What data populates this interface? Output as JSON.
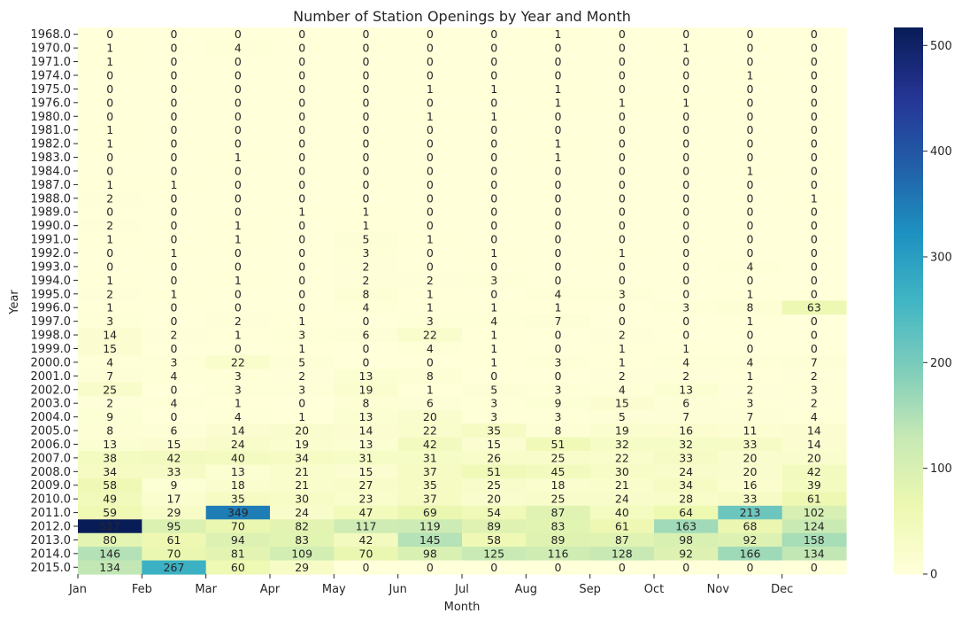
{
  "chart_data": {
    "type": "heatmap",
    "title": "Number of Station Openings by Year and Month",
    "xlabel": "Month",
    "ylabel": "Year",
    "x_tick_labels": [
      "Jan",
      "Feb",
      "Mar",
      "Apr",
      "May",
      "Jun",
      "Jul",
      "Aug",
      "Sep",
      "Oct",
      "Nov",
      "Dec"
    ],
    "y_tick_labels": [
      "1968.0",
      "1970.0",
      "1971.0",
      "1974.0",
      "1975.0",
      "1976.0",
      "1980.0",
      "1981.0",
      "1982.0",
      "1983.0",
      "1984.0",
      "1987.0",
      "1988.0",
      "1989.0",
      "1990.0",
      "1991.0",
      "1992.0",
      "1993.0",
      "1994.0",
      "1995.0",
      "1996.0",
      "1997.0",
      "1998.0",
      "1999.0",
      "2000.0",
      "2001.0",
      "2002.0",
      "2003.0",
      "2004.0",
      "2005.0",
      "2006.0",
      "2007.0",
      "2008.0",
      "2009.0",
      "2010.0",
      "2011.0",
      "2012.0",
      "2013.0",
      "2014.0",
      "2015.0"
    ],
    "values": [
      [
        0,
        0,
        0,
        0,
        0,
        0,
        0,
        1,
        0,
        0,
        0,
        0
      ],
      [
        1,
        0,
        4,
        0,
        0,
        0,
        0,
        0,
        0,
        1,
        0,
        0
      ],
      [
        1,
        0,
        0,
        0,
        0,
        0,
        0,
        0,
        0,
        0,
        0,
        0
      ],
      [
        0,
        0,
        0,
        0,
        0,
        0,
        0,
        0,
        0,
        0,
        1,
        0
      ],
      [
        0,
        0,
        0,
        0,
        0,
        1,
        1,
        1,
        0,
        0,
        0,
        0
      ],
      [
        0,
        0,
        0,
        0,
        0,
        0,
        0,
        1,
        1,
        1,
        0,
        0
      ],
      [
        0,
        0,
        0,
        0,
        0,
        1,
        1,
        0,
        0,
        0,
        0,
        0
      ],
      [
        1,
        0,
        0,
        0,
        0,
        0,
        0,
        0,
        0,
        0,
        0,
        0
      ],
      [
        1,
        0,
        0,
        0,
        0,
        0,
        0,
        1,
        0,
        0,
        0,
        0
      ],
      [
        0,
        0,
        1,
        0,
        0,
        0,
        0,
        1,
        0,
        0,
        0,
        0
      ],
      [
        0,
        0,
        0,
        0,
        0,
        0,
        0,
        0,
        0,
        0,
        1,
        0
      ],
      [
        1,
        1,
        0,
        0,
        0,
        0,
        0,
        0,
        0,
        0,
        0,
        0
      ],
      [
        2,
        0,
        0,
        0,
        0,
        0,
        0,
        0,
        0,
        0,
        0,
        1
      ],
      [
        0,
        0,
        0,
        1,
        1,
        0,
        0,
        0,
        0,
        0,
        0,
        0
      ],
      [
        2,
        0,
        1,
        0,
        1,
        0,
        0,
        0,
        0,
        0,
        0,
        0
      ],
      [
        1,
        0,
        1,
        0,
        5,
        1,
        0,
        0,
        0,
        0,
        0,
        0
      ],
      [
        0,
        1,
        0,
        0,
        3,
        0,
        1,
        0,
        1,
        0,
        0,
        0
      ],
      [
        0,
        0,
        0,
        0,
        2,
        0,
        0,
        0,
        0,
        0,
        4,
        0
      ],
      [
        1,
        0,
        1,
        0,
        2,
        2,
        3,
        0,
        0,
        0,
        0,
        0
      ],
      [
        2,
        1,
        0,
        0,
        8,
        1,
        0,
        4,
        3,
        0,
        1,
        0
      ],
      [
        1,
        0,
        0,
        0,
        4,
        1,
        1,
        1,
        0,
        3,
        8,
        63
      ],
      [
        3,
        0,
        2,
        1,
        0,
        3,
        4,
        7,
        0,
        0,
        1,
        0
      ],
      [
        14,
        2,
        1,
        3,
        6,
        22,
        1,
        0,
        2,
        0,
        0,
        0
      ],
      [
        15,
        0,
        0,
        1,
        0,
        4,
        1,
        0,
        1,
        1,
        0,
        0
      ],
      [
        4,
        3,
        22,
        5,
        0,
        0,
        1,
        3,
        1,
        4,
        4,
        7
      ],
      [
        7,
        4,
        3,
        2,
        13,
        8,
        0,
        0,
        2,
        2,
        1,
        2
      ],
      [
        25,
        0,
        3,
        3,
        19,
        1,
        5,
        3,
        4,
        13,
        2,
        3
      ],
      [
        2,
        4,
        1,
        0,
        8,
        6,
        3,
        9,
        15,
        6,
        3,
        2
      ],
      [
        9,
        0,
        4,
        1,
        13,
        20,
        3,
        3,
        5,
        7,
        7,
        4
      ],
      [
        8,
        6,
        14,
        20,
        14,
        22,
        35,
        8,
        19,
        16,
        11,
        14
      ],
      [
        13,
        15,
        24,
        19,
        13,
        42,
        15,
        51,
        32,
        32,
        33,
        14
      ],
      [
        38,
        42,
        40,
        34,
        31,
        31,
        26,
        25,
        22,
        33,
        20,
        20
      ],
      [
        34,
        33,
        13,
        21,
        15,
        37,
        51,
        45,
        30,
        24,
        20,
        42
      ],
      [
        58,
        9,
        18,
        21,
        27,
        35,
        25,
        18,
        21,
        34,
        16,
        39
      ],
      [
        49,
        17,
        35,
        30,
        23,
        37,
        20,
        25,
        24,
        28,
        33,
        61
      ],
      [
        59,
        29,
        349,
        24,
        47,
        69,
        54,
        87,
        40,
        64,
        213,
        102
      ],
      [
        517,
        95,
        70,
        82,
        117,
        119,
        89,
        83,
        61,
        163,
        68,
        124
      ],
      [
        80,
        61,
        94,
        83,
        42,
        145,
        58,
        89,
        87,
        98,
        92,
        158
      ],
      [
        146,
        70,
        81,
        109,
        70,
        98,
        125,
        116,
        128,
        92,
        166,
        134
      ],
      [
        134,
        267,
        60,
        29,
        0,
        0,
        0,
        0,
        0,
        0,
        0,
        0
      ]
    ],
    "vmin": 0,
    "vmax": 517,
    "colormap": "YlGnBu",
    "colorbar_ticks": [
      0,
      100,
      200,
      300,
      400,
      500
    ],
    "annotated": true,
    "grid": false,
    "legend": "colorbar-right"
  }
}
